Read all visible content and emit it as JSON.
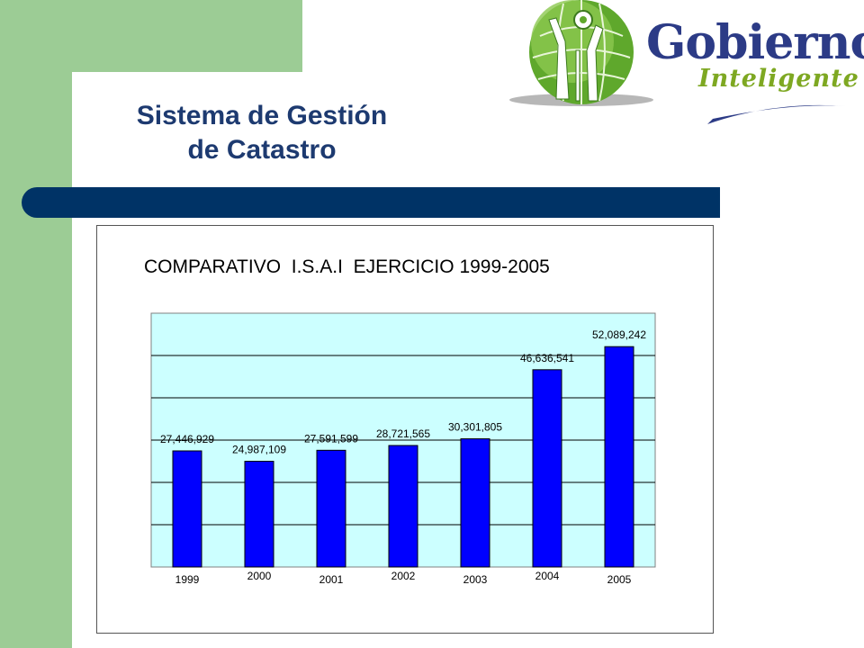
{
  "slide": {
    "title_line1": "Sistema de Gestión",
    "title_line2": "de Catastro"
  },
  "logo": {
    "word1": "Gobierno",
    "word2": "Inteligente"
  },
  "colors": {
    "green": "#9ccc95",
    "navy": "#003366",
    "title": "#1d3a70",
    "plot_bg": "#ccffff",
    "bar": "#0000ff"
  },
  "chart_data": {
    "type": "bar",
    "title": "COMPARATIVO  I.S.A.I  EJERCICIO 1999-2005",
    "xlabel": "",
    "ylabel": "",
    "categories": [
      "1999",
      "2000",
      "2001",
      "2002",
      "2003",
      "2004",
      "2005"
    ],
    "values": [
      27446929,
      24987109,
      27591599,
      28721565,
      30301805,
      46636541,
      52089242
    ],
    "labels": [
      "27,446,929",
      "24,987,109",
      "27,591,599",
      "28,721,565",
      "30,301,805",
      "46,636,541",
      "52,089,242"
    ],
    "ylim": [
      0,
      60000000
    ],
    "grid": true,
    "legend": "none"
  }
}
